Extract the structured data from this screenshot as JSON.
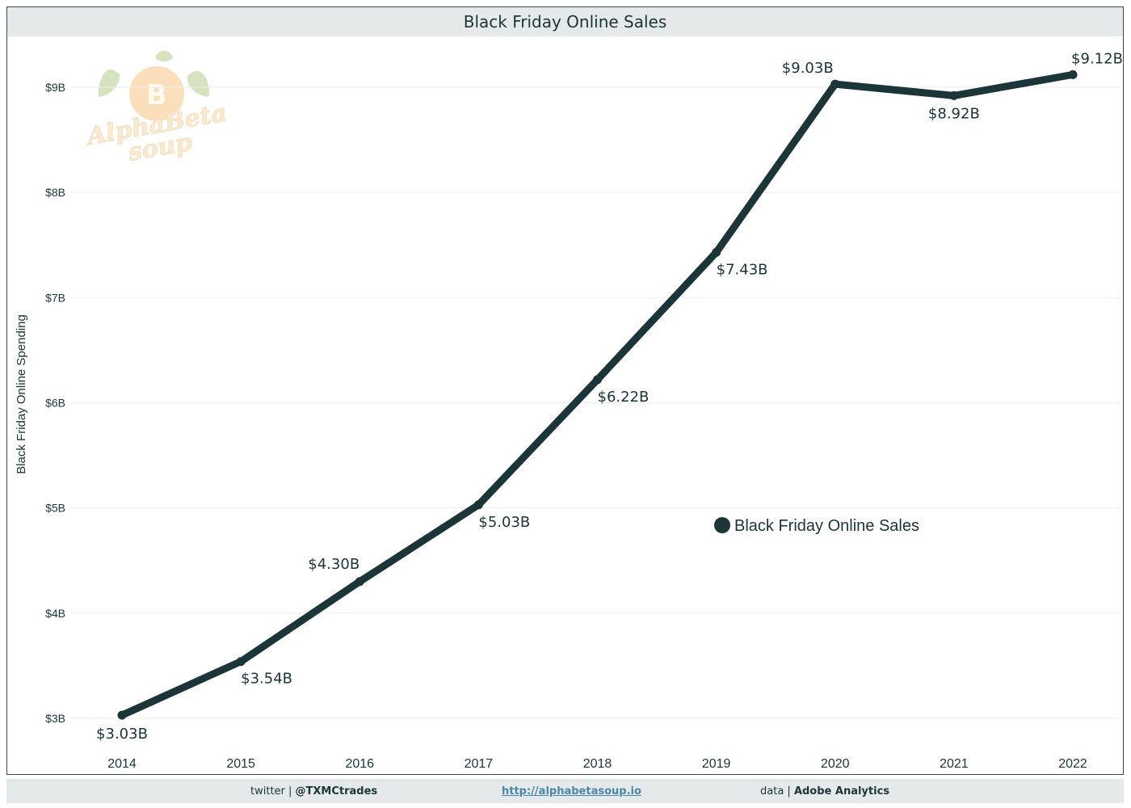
{
  "header": {
    "title": "Black Friday Online Sales"
  },
  "footer": {
    "twitter_prefix": "twitter | ",
    "twitter_handle": "@TXMCtrades",
    "link": "http://alphabetasoup.io",
    "data_prefix": "data | ",
    "data_source": "Adobe Analytics"
  },
  "watermark": {
    "line1": "AlphaBeta",
    "line2": "soup",
    "icon": "bitcoin-fruit-logo"
  },
  "colors": {
    "line": "#1b3538",
    "grid": "#eeeeee",
    "bar": "#e6e9ea"
  },
  "chart_data": {
    "type": "line",
    "title": "Black Friday Online Sales",
    "xlabel": "",
    "ylabel": "Black Friday Online Spending",
    "categories": [
      "2014",
      "2015",
      "2016",
      "2017",
      "2018",
      "2019",
      "2020",
      "2021",
      "2022"
    ],
    "series": [
      {
        "name": "Black Friday Online Sales",
        "values": [
          3.03,
          3.54,
          4.3,
          5.03,
          6.22,
          7.43,
          9.03,
          8.92,
          9.12
        ],
        "data_labels": [
          "$3.03B",
          "$3.54B",
          "$4.30B",
          "$5.03B",
          "$6.22B",
          "$7.43B",
          "$9.03B",
          "$8.92B",
          "$9.12B"
        ]
      }
    ],
    "yticks": [
      3,
      4,
      5,
      6,
      7,
      8,
      9
    ],
    "ytick_labels": [
      "$3B",
      "$4B",
      "$5B",
      "$6B",
      "$7B",
      "$8B",
      "$9B"
    ],
    "ylim": [
      2.95,
      9.45
    ],
    "grid": true,
    "legend_position": "center-right"
  }
}
